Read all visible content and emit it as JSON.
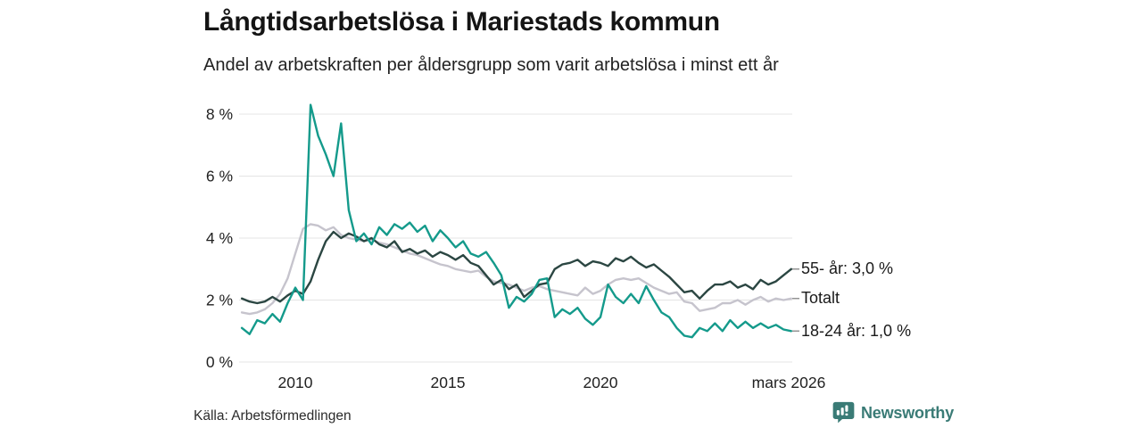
{
  "header": {
    "title": "Långtidsarbetslösa i Mariestads kommun",
    "subtitle": "Andel av arbetskraften per åldersgrupp som varit arbetslösa i minst ett år"
  },
  "chart_data": {
    "type": "line",
    "title": "Långtidsarbetslösa i Mariestads kommun",
    "subtitle": "Andel av arbetskraften per åldersgrupp som varit arbetslösa i minst ett år",
    "x_axis": {
      "range": [
        2008.25,
        2026.3
      ],
      "tick_values": [
        2010,
        2015,
        2020,
        2026.17
      ],
      "tick_labels": [
        "2010",
        "2015",
        "2020",
        "mars 2026"
      ]
    },
    "y_axis": {
      "unit": "%",
      "range": [
        0,
        8.6
      ],
      "tick_values": [
        0,
        2,
        4,
        6,
        8
      ],
      "tick_labels": [
        "0 %",
        "2 %",
        "4 %",
        "6 %",
        "8 %"
      ],
      "grid": true
    },
    "x_start": 2008.25,
    "x_step": 0.25,
    "legend_position": "right-end-labels",
    "series": [
      {
        "name": "55- år",
        "end_label": "55- år: 3,0 %",
        "end_value": "3,0 %",
        "color": "#2b4642",
        "values": [
          2.05,
          1.95,
          1.9,
          1.95,
          2.1,
          1.95,
          2.15,
          2.3,
          2.2,
          2.6,
          3.3,
          3.9,
          4.2,
          4.0,
          4.15,
          4.05,
          3.9,
          4.0,
          3.8,
          3.7,
          3.9,
          3.55,
          3.65,
          3.5,
          3.6,
          3.4,
          3.55,
          3.45,
          3.3,
          3.45,
          3.2,
          3.1,
          2.8,
          2.5,
          2.65,
          2.35,
          2.5,
          2.1,
          2.3,
          2.5,
          2.55,
          3.0,
          3.15,
          3.2,
          3.3,
          3.1,
          3.25,
          3.2,
          3.1,
          3.35,
          3.25,
          3.4,
          3.2,
          3.05,
          3.15,
          2.95,
          2.75,
          2.5,
          2.25,
          2.3,
          2.05,
          2.3,
          2.5,
          2.5,
          2.6,
          2.4,
          2.5,
          2.35,
          2.65,
          2.5,
          2.6,
          2.8,
          3.0
        ]
      },
      {
        "name": "Totalt",
        "end_label": "Totalt",
        "end_value": "",
        "color": "#c6c4cd",
        "values": [
          1.6,
          1.55,
          1.6,
          1.7,
          1.9,
          2.2,
          2.7,
          3.5,
          4.3,
          4.45,
          4.4,
          4.25,
          4.35,
          4.1,
          4.0,
          3.95,
          3.9,
          3.95,
          3.85,
          3.8,
          3.7,
          3.6,
          3.5,
          3.45,
          3.35,
          3.25,
          3.15,
          3.1,
          3.0,
          2.95,
          2.9,
          2.95,
          2.75,
          2.6,
          2.55,
          2.5,
          2.4,
          2.3,
          2.4,
          2.45,
          2.35,
          2.3,
          2.25,
          2.2,
          2.15,
          2.4,
          2.2,
          2.3,
          2.5,
          2.65,
          2.7,
          2.65,
          2.7,
          2.55,
          2.4,
          2.3,
          2.2,
          2.25,
          1.95,
          1.9,
          1.65,
          1.7,
          1.75,
          1.9,
          1.9,
          2.0,
          1.85,
          2.0,
          2.1,
          1.95,
          2.05,
          2.0,
          2.05
        ]
      },
      {
        "name": "18-24 år",
        "end_label": "18-24 år: 1,0 %",
        "end_value": "1,0 %",
        "color": "#149a8b",
        "values": [
          1.1,
          0.9,
          1.35,
          1.25,
          1.55,
          1.3,
          1.9,
          2.4,
          2.0,
          8.3,
          7.3,
          6.7,
          6.0,
          7.7,
          4.9,
          3.9,
          4.15,
          3.8,
          4.35,
          4.1,
          4.45,
          4.3,
          4.5,
          4.2,
          4.4,
          3.9,
          4.25,
          4.0,
          3.7,
          3.9,
          3.5,
          3.4,
          3.55,
          3.2,
          2.8,
          1.75,
          2.1,
          1.95,
          2.2,
          2.65,
          2.7,
          1.45,
          1.7,
          1.55,
          1.75,
          1.4,
          1.2,
          1.45,
          2.5,
          2.1,
          1.9,
          2.2,
          1.9,
          2.45,
          2.0,
          1.6,
          1.45,
          1.1,
          0.85,
          0.8,
          1.1,
          1.0,
          1.25,
          1.0,
          1.35,
          1.1,
          1.3,
          1.1,
          1.25,
          1.1,
          1.2,
          1.05,
          1.0
        ]
      }
    ],
    "grid_color": "#e4e4e4",
    "axis_text_color": "#222222"
  },
  "footer": {
    "source": "Källa: Arbetsförmedlingen",
    "brand": "Newsworthy",
    "brand_color": "#3a7b76"
  }
}
